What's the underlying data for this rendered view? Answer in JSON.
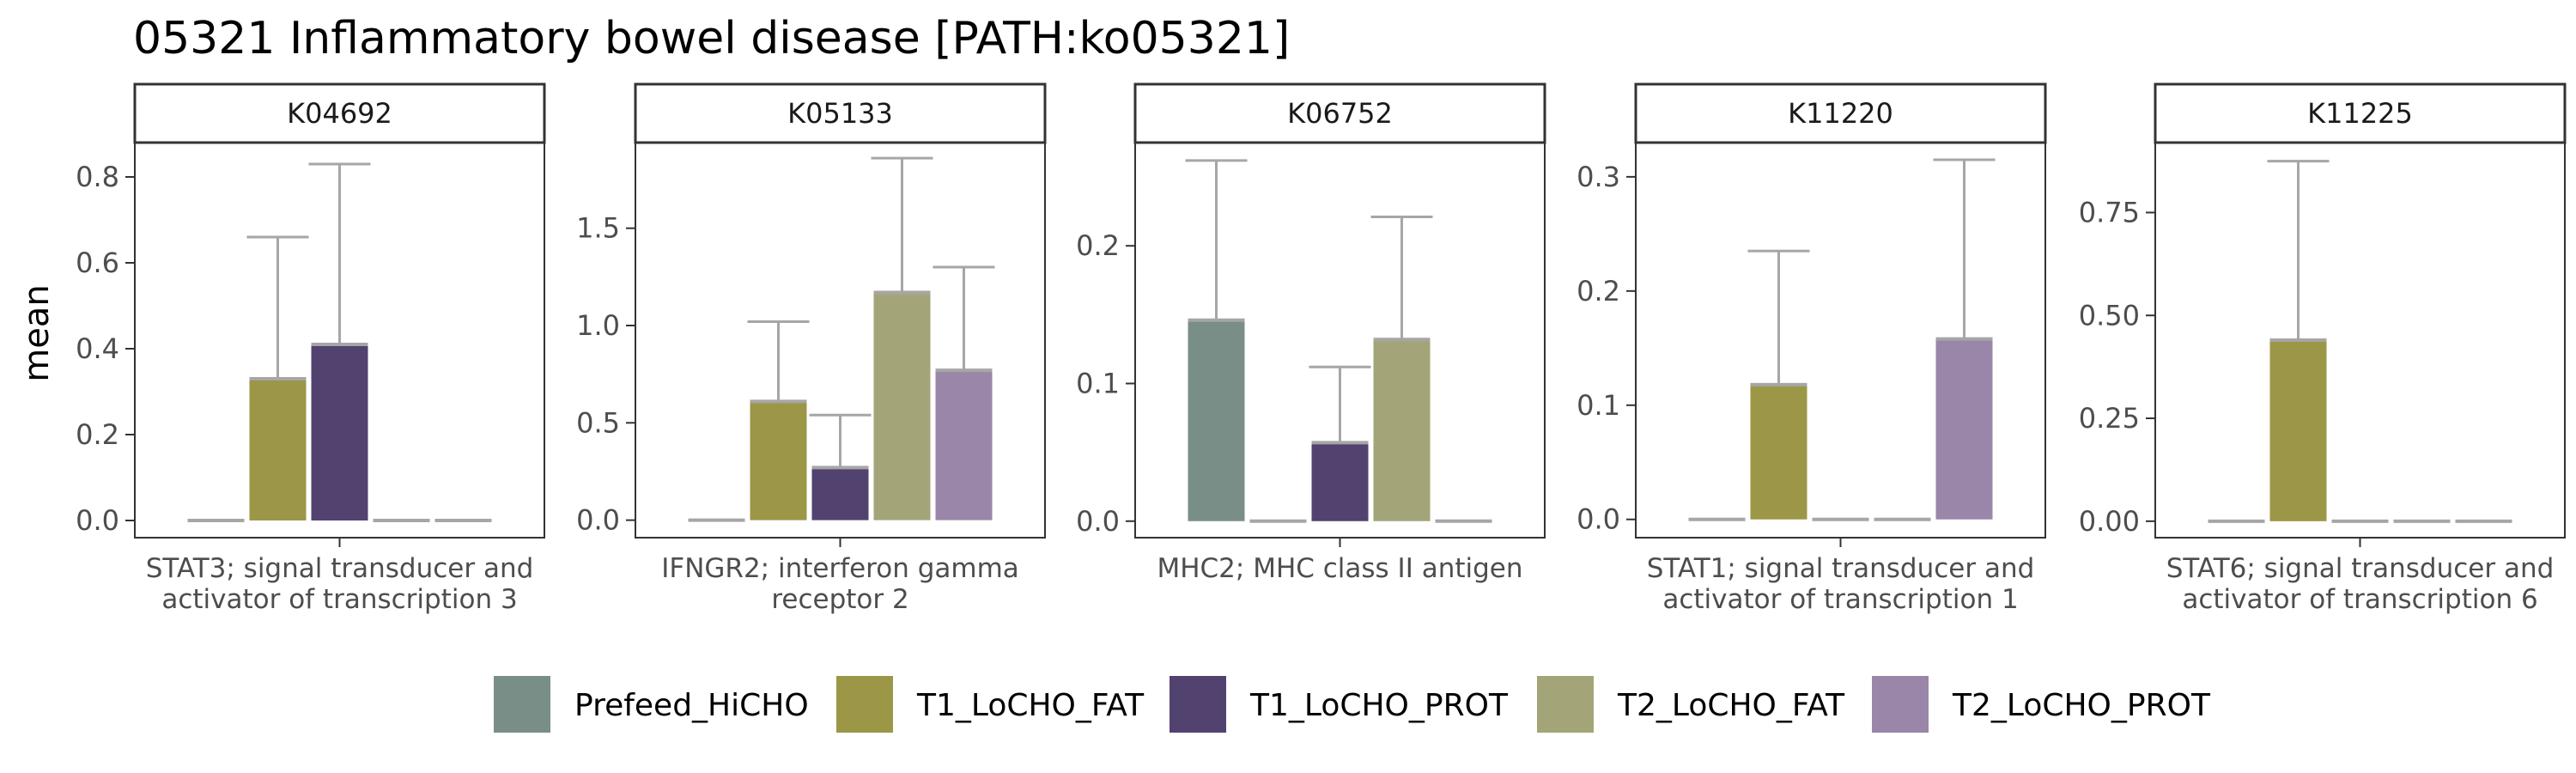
{
  "chart_data": {
    "type": "bar",
    "title": "05321 Inflammatory bowel disease [PATH:ko05321]",
    "ylabel": "mean",
    "xlabel": "",
    "grid": false,
    "legend_position": "bottom",
    "series": [
      {
        "name": "Prefeed_HiCHO",
        "color": "#798e87"
      },
      {
        "name": "T1_LoCHO_FAT",
        "color": "#9c9647"
      },
      {
        "name": "T1_LoCHO_PROT",
        "color": "#524270"
      },
      {
        "name": "T2_LoCHO_FAT",
        "color": "#a3a578"
      },
      {
        "name": "T2_LoCHO_PROT",
        "color": "#9a86a8"
      }
    ],
    "panels": [
      {
        "strip": "K04692",
        "category_lines": [
          "STAT3; signal transducer and",
          "activator of transcription 3"
        ],
        "ylim": [
          -0.04,
          0.88
        ],
        "ticks": [
          0.0,
          0.2,
          0.4,
          0.6,
          0.8
        ],
        "tick_labels": [
          "0.0",
          "0.2",
          "0.4",
          "0.6",
          "0.8"
        ],
        "values": [
          0,
          0.33,
          0.41,
          0,
          0
        ],
        "error_upper": [
          0,
          0.66,
          0.83,
          0,
          0
        ]
      },
      {
        "strip": "K05133",
        "category_lines": [
          "IFNGR2; interferon gamma",
          "receptor 2"
        ],
        "ylim": [
          -0.09,
          1.94
        ],
        "ticks": [
          0.0,
          0.5,
          1.0,
          1.5
        ],
        "tick_labels": [
          "0.0",
          "0.5",
          "1.0",
          "1.5"
        ],
        "values": [
          0,
          0.61,
          0.27,
          1.17,
          0.77
        ],
        "error_upper": [
          0,
          1.02,
          0.54,
          1.86,
          1.3
        ]
      },
      {
        "strip": "K06752",
        "category_lines": [
          "MHC2; MHC class II antigen"
        ],
        "ylim": [
          -0.012,
          0.275
        ],
        "ticks": [
          0.0,
          0.1,
          0.2
        ],
        "tick_labels": [
          "0.0",
          "0.1",
          "0.2"
        ],
        "values": [
          0.146,
          0,
          0.057,
          0.132,
          0
        ],
        "error_upper": [
          0.262,
          0,
          0.112,
          0.221,
          0
        ]
      },
      {
        "strip": "K11220",
        "category_lines": [
          "STAT1; signal transducer and",
          "activator of transcription 1"
        ],
        "ylim": [
          -0.016,
          0.33
        ],
        "ticks": [
          0.0,
          0.1,
          0.2,
          0.3
        ],
        "tick_labels": [
          "0.0",
          "0.1",
          "0.2",
          "0.3"
        ],
        "values": [
          0,
          0.118,
          0,
          0,
          0.158
        ],
        "error_upper": [
          0,
          0.235,
          0,
          0,
          0.315
        ]
      },
      {
        "strip": "K11225",
        "category_lines": [
          "STAT6; signal transducer and",
          "activator of transcription 6"
        ],
        "ylim": [
          -0.04,
          0.92
        ],
        "ticks": [
          0.0,
          0.25,
          0.5,
          0.75
        ],
        "tick_labels": [
          "0.00",
          "0.25",
          "0.50",
          "0.75"
        ],
        "values": [
          0,
          0.44,
          0,
          0,
          0
        ],
        "error_upper": [
          0,
          0.875,
          0,
          0,
          0
        ]
      }
    ]
  }
}
